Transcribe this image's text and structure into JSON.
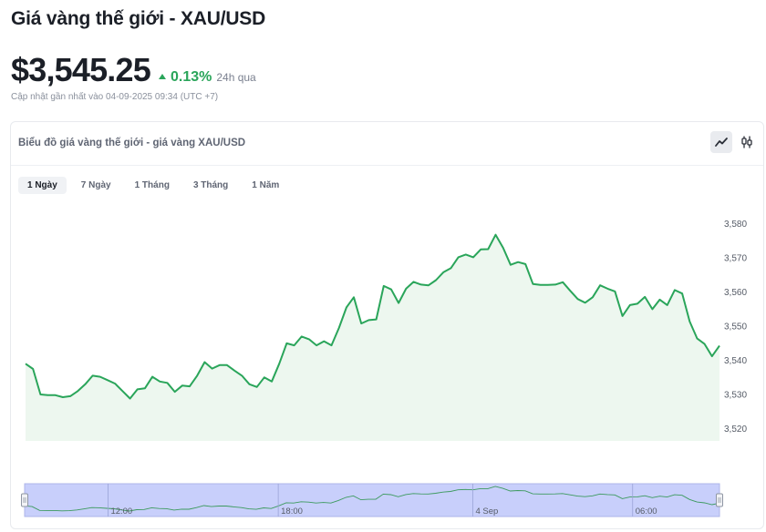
{
  "header": {
    "title": "Giá vàng thế giới - XAU/USD"
  },
  "quote": {
    "price": "$3,545.25",
    "change": "0.13%",
    "period": "24h qua",
    "updated": "Cập nhật gần nhất vào 04-09-2025 09:34 (UTC +7)"
  },
  "card": {
    "title": "Biểu đồ giá vàng thế giới - giá vàng XAU/USD",
    "chart_types": [
      {
        "icon": "line-chart-icon",
        "active": true
      },
      {
        "icon": "candlestick-icon",
        "active": false
      }
    ],
    "ranges": [
      {
        "label": "1 Ngày",
        "active": true
      },
      {
        "label": "7 Ngày",
        "active": false
      },
      {
        "label": "1 Tháng",
        "active": false
      },
      {
        "label": "3 Tháng",
        "active": false
      },
      {
        "label": "1 Năm",
        "active": false
      }
    ]
  },
  "colors": {
    "line": "#2aa55a",
    "area": "#edf7ef",
    "up": "#2aa55a",
    "navigator_fill": "#c8cffb",
    "navigator_line": "#3c9a5e"
  },
  "chart_data": {
    "type": "area",
    "series": [
      {
        "values": [
          3539,
          3537.5,
          3530,
          3529.8,
          3529.8,
          3529.2,
          3529.5,
          3531,
          3533,
          3535.5,
          3535.2,
          3534.2,
          3533.2,
          3531,
          3528.8,
          3531.5,
          3531.8,
          3535.2,
          3533.8,
          3533.4,
          3530.8,
          3532.6,
          3532.4,
          3535.5,
          3539.5,
          3537.6,
          3538.6,
          3538.6,
          3537,
          3535.5,
          3533,
          3532.2,
          3535,
          3533.8,
          3539,
          3545,
          3544.4,
          3547,
          3546.2,
          3544.4,
          3545.6,
          3544.4,
          3549.5,
          3555.5,
          3558.5,
          3550.8,
          3551.8,
          3552,
          3561.8,
          3560.8,
          3556.8,
          3561,
          3563,
          3562.2,
          3562,
          3563.5,
          3565.8,
          3567,
          3570.2,
          3571,
          3570.2,
          3572.5,
          3572.6,
          3576.8,
          3573,
          3568,
          3568.8,
          3568.2,
          3562.4,
          3562.1,
          3562.1,
          3562.2,
          3562.9,
          3560.4,
          3558,
          3556.9,
          3558.5,
          3562,
          3561,
          3560.2,
          3553,
          3556.2,
          3556.6,
          3558.6,
          3555,
          3557.8,
          3556.2,
          3560.6,
          3559.6,
          3551.4,
          3546.4,
          3544.8,
          3541.2,
          3544.3
        ]
      }
    ],
    "yticks": [
      3580,
      3570,
      3560,
      3550,
      3540,
      3530,
      3520
    ],
    "ylim": [
      3516.4,
      3585
    ],
    "y_axis_position": "right",
    "grid": false,
    "navigator": {
      "xticks": [
        "12:00",
        "18:00",
        "4 Sep",
        "06:00"
      ],
      "xtick_positions": [
        0.12,
        0.365,
        0.645,
        0.875
      ]
    }
  }
}
